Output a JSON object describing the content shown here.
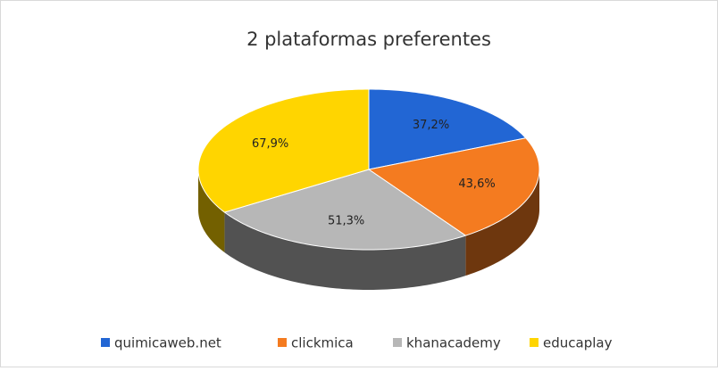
{
  "chart_data": {
    "type": "pie",
    "title": "2 plataformas preferentes",
    "categories": [
      "quimicaweb.net",
      "clickmica",
      "khanacademy",
      "educaplay"
    ],
    "values": [
      37.2,
      43.6,
      51.3,
      67.9
    ],
    "value_labels": [
      "37,2%",
      "43,6%",
      "51,3%",
      "67,9%"
    ],
    "colors": [
      "#2266d4",
      "#f47b20",
      "#b7b7b7",
      "#ffd500"
    ],
    "legend": "bottom"
  }
}
